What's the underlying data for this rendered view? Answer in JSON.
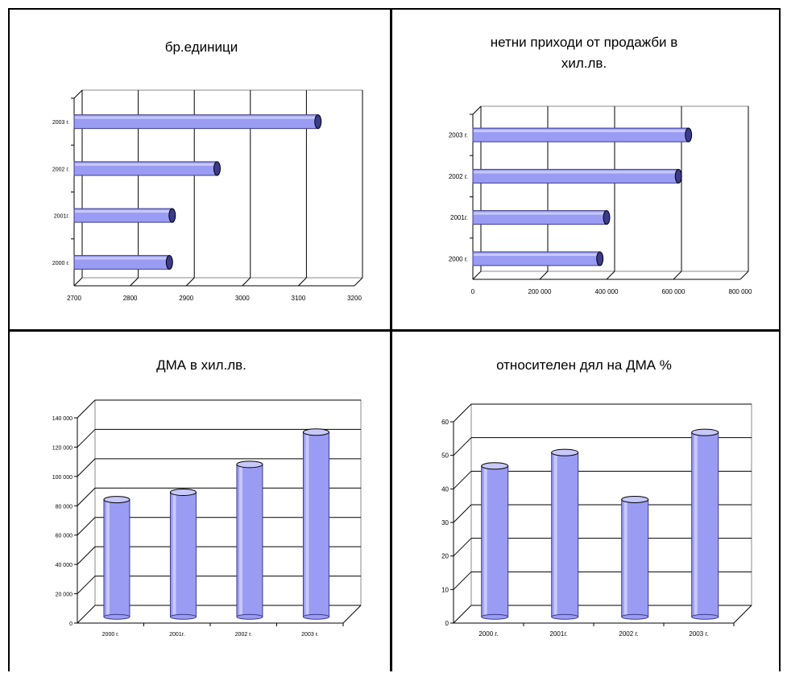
{
  "colors": {
    "bar_fill": "#9a9cf4",
    "bar_dark": "#3c3c8c",
    "bar_light": "#c8c9fb",
    "axis": "#000000",
    "grid": "#000000"
  },
  "chart_data": [
    {
      "type": "bar",
      "orientation": "horizontal",
      "title": "бр.единици",
      "categories": [
        "2000 г.",
        "2001г.",
        "2002 г.",
        "2003 г."
      ],
      "category_labels": [
        "2000 г.",
        "2001г.",
        "2002 г.",
        "2003 г."
      ],
      "values": [
        2870,
        2875,
        2955,
        3135
      ],
      "xlim": [
        2700,
        3200
      ],
      "xticks": [
        2700,
        2800,
        2900,
        3000,
        3100,
        3200
      ],
      "xtick_labels": [
        "2700",
        "2800",
        "2900",
        "3000",
        "3100",
        "3200"
      ],
      "grid": true,
      "style": "3d-cylinder"
    },
    {
      "type": "bar",
      "orientation": "horizontal",
      "title": "нетни приходи от продажби в хил.лв.",
      "title_lines": [
        "нетни приходи от продажби в",
        "хил.лв."
      ],
      "categories": [
        "2000 г.",
        "2001г.",
        "2002 г.",
        "2003 г."
      ],
      "category_labels": [
        "2000 г.",
        "2001г.",
        "2002 г.",
        "2003 г."
      ],
      "values": [
        380000,
        400000,
        615000,
        645000
      ],
      "xlim": [
        0,
        800000
      ],
      "xticks": [
        0,
        200000,
        400000,
        600000,
        800000
      ],
      "xtick_labels": [
        "0",
        "200 000",
        "400 000",
        "600 000",
        "800 000"
      ],
      "grid": true,
      "style": "3d-cylinder"
    },
    {
      "type": "bar",
      "orientation": "vertical",
      "title": "ДМА в хил.лв.",
      "categories": [
        "2000 г.",
        "2001г.",
        "2002 г.",
        "2003 г."
      ],
      "category_labels": [
        "2000 г.",
        "2001г.",
        "2002 г.",
        "2003 г."
      ],
      "values": [
        80000,
        85000,
        104000,
        126000
      ],
      "ylim": [
        0,
        140000
      ],
      "yticks": [
        0,
        20000,
        40000,
        60000,
        80000,
        100000,
        120000,
        140000
      ],
      "ytick_labels": [
        "0",
        "20 000",
        "40 000",
        "60 000",
        "80 000",
        "100 000",
        "120 000",
        "140 000"
      ],
      "grid": true,
      "style": "3d-cylinder"
    },
    {
      "type": "bar",
      "orientation": "vertical",
      "title": "относителен дял на ДМА %",
      "categories": [
        "2000 г.",
        "2001г.",
        "2002 г.",
        "2003 г."
      ],
      "category_labels": [
        "2000 г.",
        "2001г.",
        "2002 г.",
        "2003 г."
      ],
      "values": [
        45,
        49,
        35,
        55
      ],
      "ylim": [
        0,
        60
      ],
      "yticks": [
        0,
        10,
        20,
        30,
        40,
        50,
        60
      ],
      "ytick_labels": [
        "0",
        "10",
        "20",
        "30",
        "40",
        "50",
        "60"
      ],
      "grid": true,
      "style": "3d-cylinder"
    }
  ]
}
